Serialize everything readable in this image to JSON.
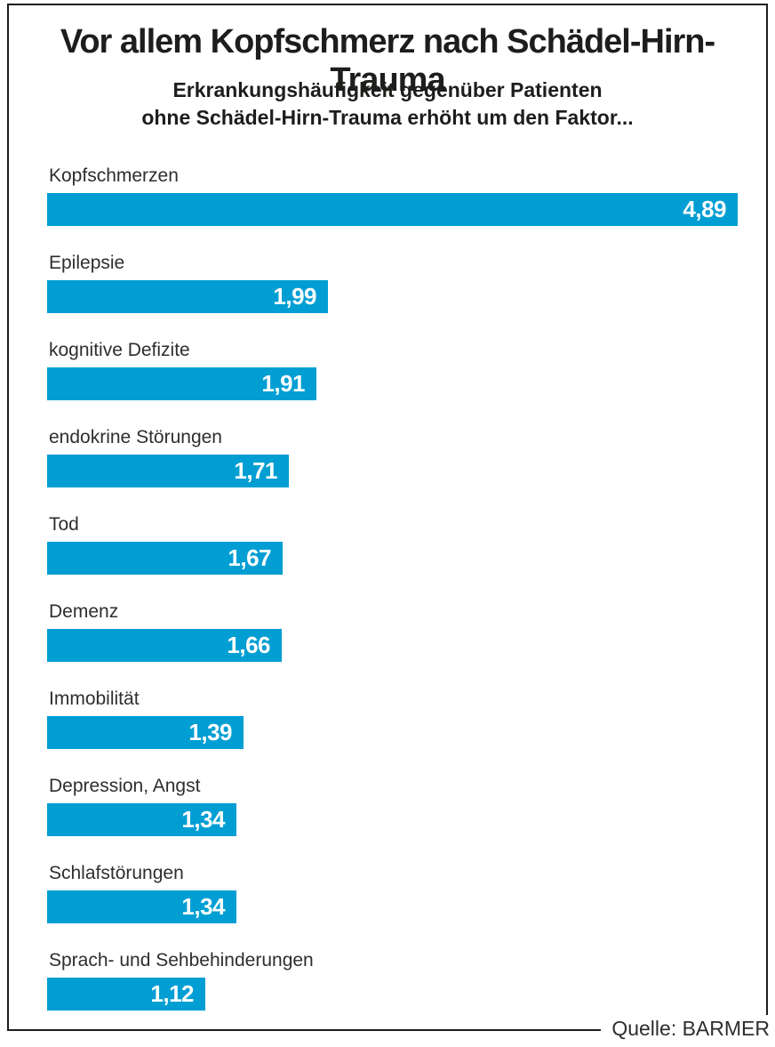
{
  "header": {
    "title": "Vor allem Kopfschmerz nach Schädel-Hirn-Trauma",
    "subtitle_line1": "Erkrankungshäufigkeit gegenüber Patienten",
    "subtitle_line2": "ohne Schädel-Hirn-Trauma erhöht um den Faktor..."
  },
  "footer": {
    "source": "Quelle: BARMER"
  },
  "colors": {
    "bar": "#009ed3",
    "frame": "#1d1d1b",
    "label_text": "#2e2e2d",
    "value_text": "#ffffff"
  },
  "chart_data": {
    "type": "bar",
    "orientation": "horizontal",
    "title": "Vor allem Kopfschmerz nach Schädel-Hirn-Trauma",
    "subtitle": "Erkrankungshäufigkeit gegenüber Patienten ohne Schädel-Hirn-Trauma erhöht um den Faktor...",
    "categories": [
      "Kopfschmerzen",
      "Epilepsie",
      "kognitive Defizite",
      "endokrine Störungen",
      "Tod",
      "Demenz",
      "Immobilität",
      "Depression, Angst",
      "Schlafstörungen",
      "Sprach- und Sehbehinderungen"
    ],
    "values": [
      4.89,
      1.99,
      1.91,
      1.71,
      1.67,
      1.66,
      1.39,
      1.34,
      1.34,
      1.12
    ],
    "value_labels": [
      "4,89",
      "1,99",
      "1,91",
      "1,71",
      "1,67",
      "1,66",
      "1,39",
      "1,34",
      "1,34",
      "1,12"
    ],
    "xlim": [
      0,
      5.2
    ],
    "grid": false,
    "legend": false,
    "value_label_position": "inside-right",
    "source": "Quelle: BARMER"
  }
}
